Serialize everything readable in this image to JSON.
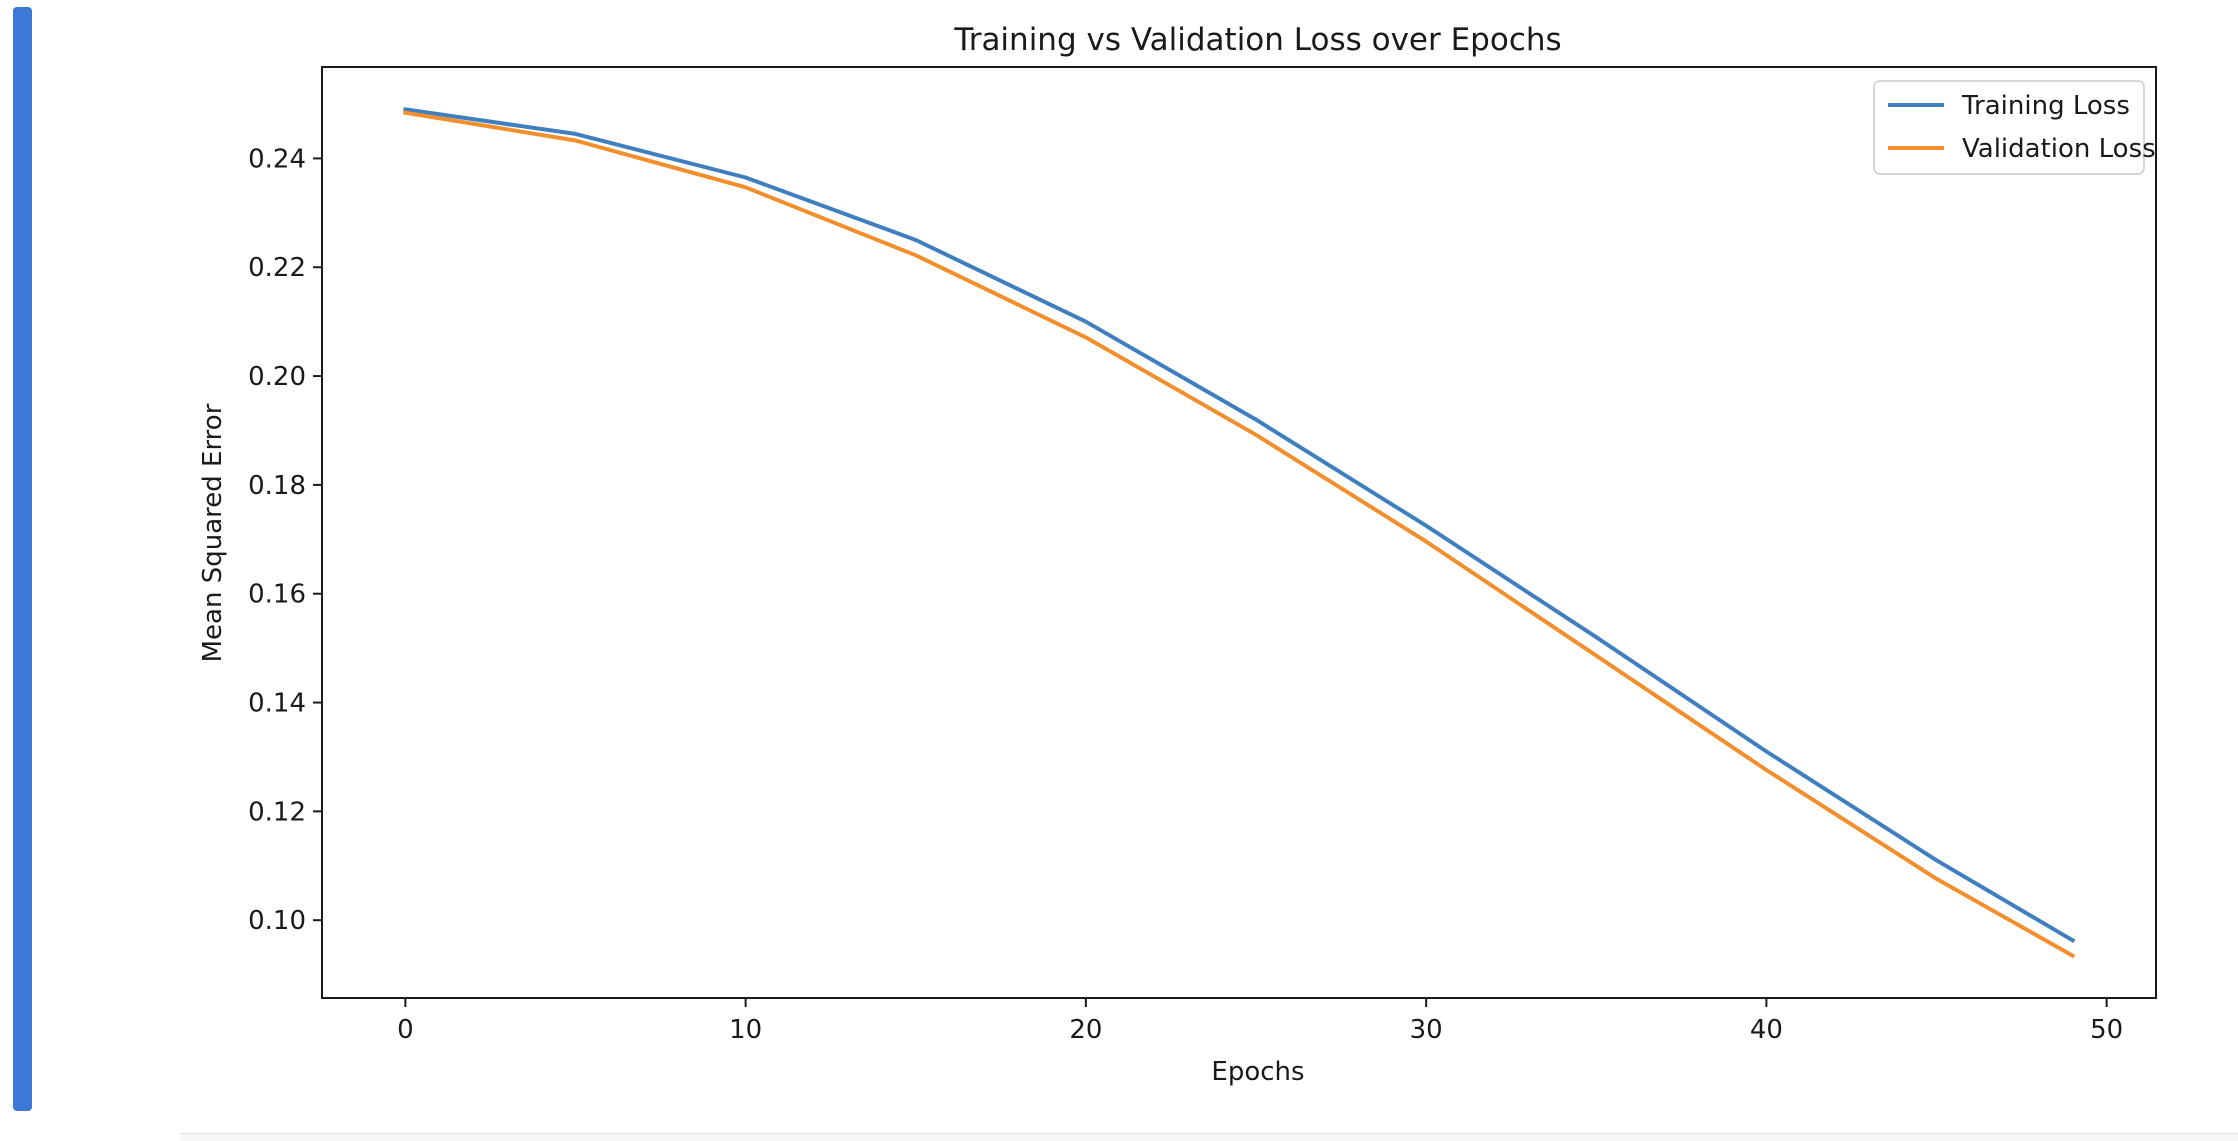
{
  "chart_data": {
    "type": "line",
    "title": "Training vs Validation Loss over Epochs",
    "xlabel": "Epochs",
    "ylabel": "Mean Squared Error",
    "xlim": [
      -2.45,
      51.45
    ],
    "ylim": [
      0.0857,
      0.2568
    ],
    "xticks": [
      0,
      10,
      20,
      30,
      40,
      50
    ],
    "yticks": [
      0.1,
      0.12,
      0.14,
      0.16,
      0.18,
      0.2,
      0.22,
      0.24
    ],
    "xtick_labels": [
      "0",
      "10",
      "20",
      "30",
      "40",
      "50"
    ],
    "ytick_labels": [
      "0.10",
      "0.12",
      "0.14",
      "0.16",
      "0.18",
      "0.20",
      "0.22",
      "0.24"
    ],
    "grid": false,
    "legend_position": "top-right",
    "x": [
      0,
      5,
      10,
      15,
      20,
      25,
      30,
      35,
      40,
      45,
      49
    ],
    "series": [
      {
        "name": "Training Loss",
        "color": "#3f7fbf",
        "values": [
          0.249,
          0.2445,
          0.2365,
          0.225,
          0.21,
          0.192,
          0.1725,
          0.152,
          0.131,
          0.111,
          0.0963
        ]
      },
      {
        "name": "Validation Loss",
        "color": "#f28e2b",
        "values": [
          0.2484,
          0.2433,
          0.2347,
          0.2222,
          0.2071,
          0.1892,
          0.1696,
          0.1486,
          0.1276,
          0.1076,
          0.0935
        ]
      }
    ]
  }
}
